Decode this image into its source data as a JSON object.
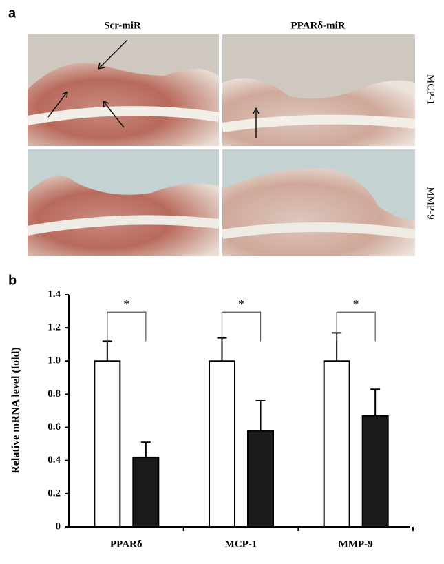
{
  "panel_a": {
    "label": "a",
    "columns": [
      "Scr-miR",
      "PPARδ-miR"
    ],
    "rows": [
      "MCP-1",
      "MMP-9"
    ]
  },
  "chart_data": {
    "type": "bar",
    "panel_label": "b",
    "y_label": "Relative mRNA level (fold)",
    "categories": [
      "PPARδ",
      "MCP-1",
      "MMP-9"
    ],
    "series": [
      {
        "color": "#ffffff",
        "values": [
          1.0,
          1.0,
          1.0
        ],
        "errors": [
          0.12,
          0.14,
          0.17
        ]
      },
      {
        "color": "#1a1a1a",
        "values": [
          0.42,
          0.58,
          0.67
        ],
        "errors": [
          0.09,
          0.18,
          0.16
        ]
      }
    ],
    "significance": [
      "*",
      "*",
      "*"
    ],
    "ylim": [
      0,
      1.4
    ],
    "yticks": [
      0,
      0.2,
      0.4,
      0.6,
      0.8,
      {
        "value": 1,
        "label": "1.0"
      },
      1.2,
      1.4
    ]
  }
}
